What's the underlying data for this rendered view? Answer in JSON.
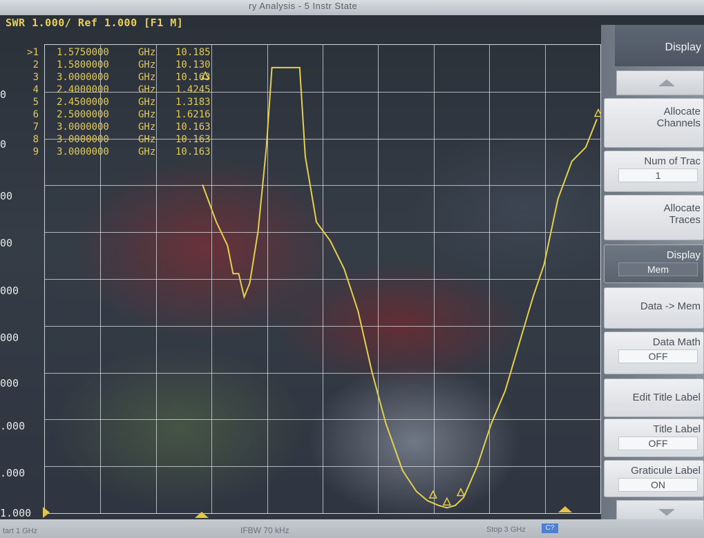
{
  "window": {
    "title": "ry Analysis  -  5 Instr State"
  },
  "channel": {
    "title": "SWR 1.000/ Ref 1.000 [F1 M]"
  },
  "yaxis": {
    "labels": [
      "0",
      "0",
      "00",
      "00",
      "000",
      "000",
      "000",
      ".000",
      ".000",
      "1.000"
    ]
  },
  "markers": [
    {
      "num": ">1",
      "freq": "1.5750000",
      "unit": "GHz",
      "value": "10.185"
    },
    {
      "num": "2",
      "freq": "1.5800000",
      "unit": "GHz",
      "value": "10.130"
    },
    {
      "num": "3",
      "freq": "3.0000000",
      "unit": "GHz",
      "value": "10.163"
    },
    {
      "num": "4",
      "freq": "2.4000000",
      "unit": "GHz",
      "value": "1.4245"
    },
    {
      "num": "5",
      "freq": "2.4500000",
      "unit": "GHz",
      "value": "1.3183"
    },
    {
      "num": "6",
      "freq": "2.5000000",
      "unit": "GHz",
      "value": "1.6216"
    },
    {
      "num": "7",
      "freq": "3.0000000",
      "unit": "GHz",
      "value": "10.163"
    },
    {
      "num": "8",
      "freq": "3.0000000",
      "unit": "GHz",
      "value": "10.163"
    },
    {
      "num": "9",
      "freq": "3.0000000",
      "unit": "GHz",
      "value": "10.163"
    }
  ],
  "trace": {
    "color": "#e6cf4e",
    "x_range_ghz": [
      1,
      3
    ],
    "points": [
      [
        1.57,
        8.0
      ],
      [
        1.62,
        7.2
      ],
      [
        1.66,
        6.7
      ],
      [
        1.68,
        6.1
      ],
      [
        1.7,
        6.1
      ],
      [
        1.72,
        5.6
      ],
      [
        1.74,
        5.9
      ],
      [
        1.77,
        7.0
      ],
      [
        1.8,
        8.8
      ],
      [
        1.82,
        10.5
      ],
      [
        1.92,
        10.5
      ],
      [
        1.94,
        8.6
      ],
      [
        1.98,
        7.2
      ],
      [
        2.03,
        6.8
      ],
      [
        2.08,
        6.2
      ],
      [
        2.13,
        5.3
      ],
      [
        2.18,
        4.0
      ],
      [
        2.23,
        2.9
      ],
      [
        2.29,
        1.9
      ],
      [
        2.34,
        1.45
      ],
      [
        2.38,
        1.25
      ],
      [
        2.42,
        1.15
      ],
      [
        2.45,
        1.1
      ],
      [
        2.48,
        1.15
      ],
      [
        2.51,
        1.32
      ],
      [
        2.56,
        2.0
      ],
      [
        2.61,
        2.9
      ],
      [
        2.66,
        3.6
      ],
      [
        2.71,
        4.6
      ],
      [
        2.76,
        5.6
      ],
      [
        2.8,
        6.3
      ],
      [
        2.85,
        7.7
      ],
      [
        2.9,
        8.5
      ],
      [
        2.95,
        8.8
      ],
      [
        2.99,
        9.4
      ]
    ],
    "y_range": [
      1,
      11
    ]
  },
  "softkeys": {
    "header": "Display",
    "items": [
      {
        "label1": "Allocate",
        "label2": "Channels",
        "value": ""
      },
      {
        "label1": "Num of Trac",
        "label2": "",
        "value": "1"
      },
      {
        "label1": "Allocate",
        "label2": "Traces",
        "value": ""
      },
      {
        "label1": "Display",
        "label2": "",
        "value": "Mem"
      },
      {
        "label1": "Data -> Mem",
        "label2": "",
        "value": ""
      },
      {
        "label1": "Data Math",
        "label2": "",
        "value": "OFF"
      },
      {
        "label1": "Edit Title Label",
        "label2": "",
        "value": ""
      },
      {
        "label1": "Title Label",
        "label2": "",
        "value": "OFF"
      },
      {
        "label1": "Graticule Label",
        "label2": "",
        "value": "ON"
      }
    ]
  },
  "status": {
    "start": "tart 1 GHz",
    "ifbw": "IFBW 70 kHz",
    "stop": "Stop 3 GHz",
    "cal": "C?"
  }
}
